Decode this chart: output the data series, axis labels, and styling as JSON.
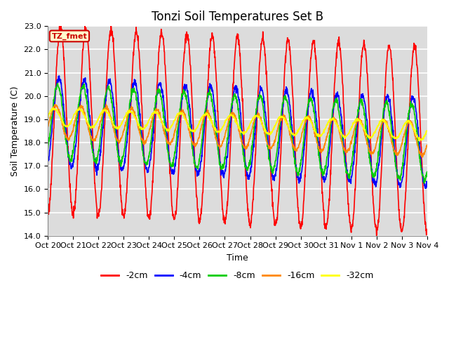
{
  "title": "Tonzi Soil Temperatures Set B",
  "xlabel": "Time",
  "ylabel": "Soil Temperature (C)",
  "ylim": [
    14.0,
    23.0
  ],
  "yticks": [
    14.0,
    15.0,
    16.0,
    17.0,
    18.0,
    19.0,
    20.0,
    21.0,
    22.0,
    23.0
  ],
  "xtick_labels": [
    "Oct 20",
    "Oct 21",
    "Oct 22",
    "Oct 23",
    "Oct 24",
    "Oct 25",
    "Oct 26",
    "Oct 27",
    "Oct 28",
    "Oct 29",
    "Oct 30",
    "Oct 31",
    "Nov 1",
    "Nov 2",
    "Nov 3",
    "Nov 4"
  ],
  "colors": {
    "-2cm": "#ff0000",
    "-4cm": "#0000ff",
    "-8cm": "#00cc00",
    "-16cm": "#ff8800",
    "-32cm": "#ffff00"
  },
  "fig_bg_color": "#ffffff",
  "plot_bg_color": "#dcdcdc",
  "legend_label": "TZ_fmet",
  "legend_facecolor": "#ffffcc",
  "legend_edgecolor": "#cc0000",
  "title_fontsize": 12,
  "axis_label_fontsize": 9,
  "tick_fontsize": 8,
  "days": 15,
  "n_points": 1500
}
